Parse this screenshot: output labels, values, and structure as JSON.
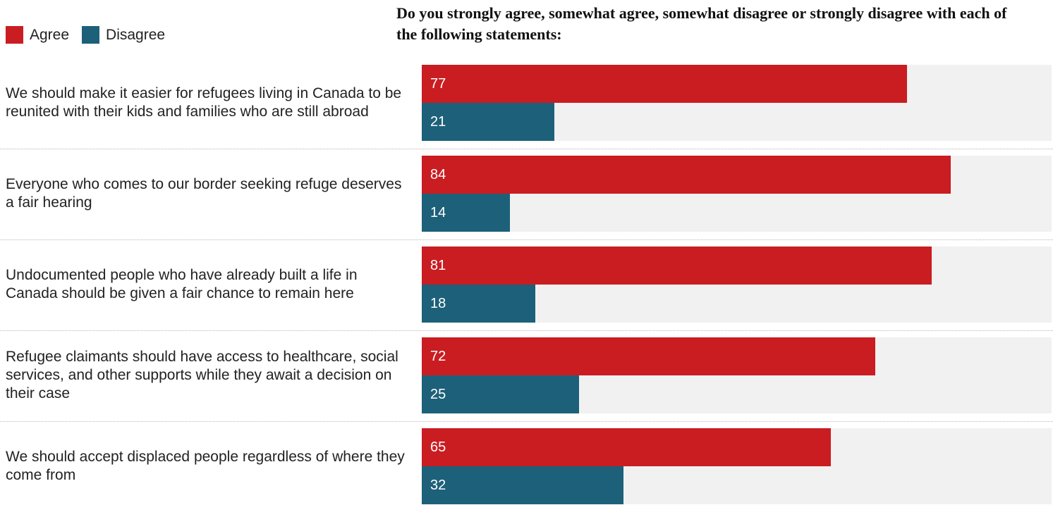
{
  "chart_data": {
    "type": "bar",
    "orientation": "horizontal",
    "title": "Do you strongly agree, somewhat agree, somewhat disagree or strongly disagree with each of the following statements:",
    "legend": {
      "placement": "top-left"
    },
    "xlim": [
      0,
      100
    ],
    "grid": false,
    "categories": [
      "We should make it easier for refugees living in Canada to be reunited with their kids and families who are still abroad",
      "Everyone who comes to our border seeking refuge deserves a fair hearing",
      "Undocumented people who have already built a life in Canada should be given a fair chance to remain here",
      "Refugee claimants should have access to healthcare, social services, and other supports while they await a decision on their case",
      "We should accept displaced people regardless of where they come from"
    ],
    "series": [
      {
        "name": "Agree",
        "color": "#c91d22",
        "values": [
          77,
          84,
          81,
          72,
          65
        ]
      },
      {
        "name": "Disagree",
        "color": "#1d6079",
        "values": [
          21,
          14,
          18,
          25,
          32
        ]
      }
    ]
  }
}
